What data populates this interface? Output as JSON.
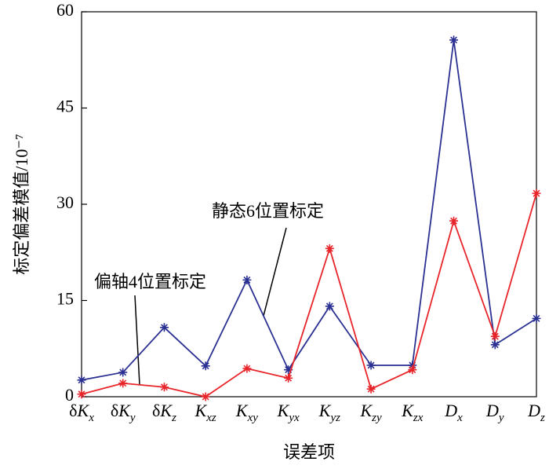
{
  "chart_data": {
    "type": "line",
    "ylabel": "标定偏差模值/10⁻⁷",
    "xlabel": "误差项",
    "categories": [
      "δKx",
      "δKy",
      "δKz",
      "Kxz",
      "Kxy",
      "Kyx",
      "Kyz",
      "Kzy",
      "Kzx",
      "Dx",
      "Dy",
      "Dz"
    ],
    "series": [
      {
        "name": "静态6位置标定",
        "color": "#2b3192",
        "values": [
          2.6,
          3.8,
          10.8,
          4.8,
          18.2,
          4.2,
          14.1,
          4.9,
          4.9,
          55.6,
          8.1,
          12.2
        ]
      },
      {
        "name": "偏轴4位置标定",
        "color": "#e8252a",
        "values": [
          0.4,
          2.1,
          1.5,
          0,
          4.4,
          2.9,
          23.1,
          1.2,
          4.2,
          27.4,
          9.4,
          31.7
        ]
      }
    ],
    "ylim": [
      0,
      60
    ],
    "yticks": [
      0,
      15,
      30,
      45,
      60
    ]
  }
}
